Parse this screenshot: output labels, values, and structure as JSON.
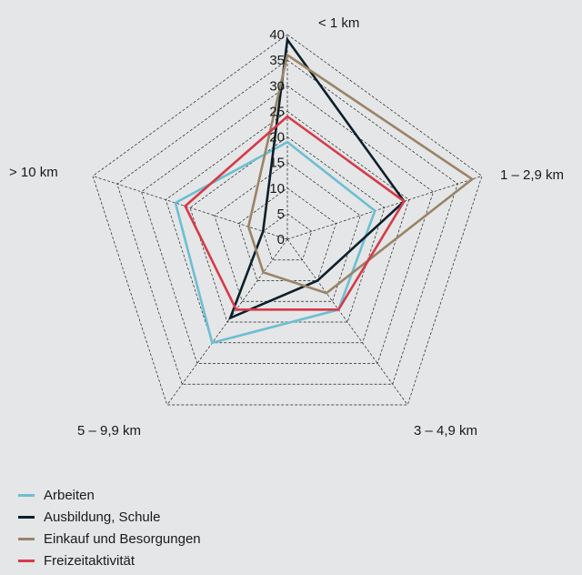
{
  "chart_data": {
    "type": "radar",
    "axes": [
      "< 1 km",
      "1 – 2,9 km",
      "3 – 4,9 km",
      "5 – 9,9 km",
      "> 10 km"
    ],
    "ticks": [
      "0",
      "5",
      "10",
      "15",
      "20",
      "25",
      "30",
      "35",
      "40"
    ],
    "rlim": [
      0,
      40
    ],
    "grid": true,
    "legend_position": "bottom-left",
    "series": [
      {
        "name": "Arbeiten",
        "color": "#6bbfd2",
        "values": [
          19,
          18,
          17,
          25,
          23
        ]
      },
      {
        "name": "Ausbildung, Schule",
        "color": "#0b1f2a",
        "values": [
          39,
          24,
          10,
          19,
          5
        ]
      },
      {
        "name": "Einkauf und Besorgungen",
        "color": "#9a8467",
        "values": [
          36,
          38,
          13,
          8,
          8
        ]
      },
      {
        "name": "Freizeitaktivität",
        "color": "#d63a4a",
        "values": [
          24,
          24,
          17,
          17,
          21
        ]
      }
    ]
  }
}
